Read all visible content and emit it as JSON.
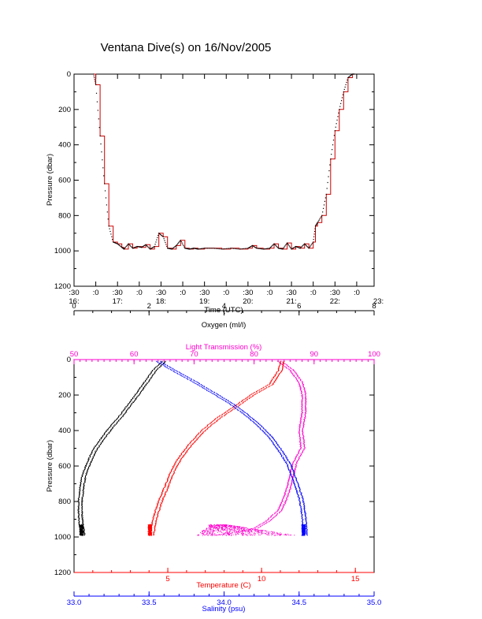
{
  "title": "Ventana Dive(s) on 16/Nov/2005",
  "colors": {
    "black": "#000000",
    "red": "#ff0000",
    "magenta": "#ff00cc",
    "blue": "#0000ff",
    "dive_line": "#cc0000"
  },
  "chart_data": [
    {
      "type": "line",
      "name": "dive-profile",
      "xlabel": "Time (UTC)",
      "ylabel": "Pressure (dbar)",
      "x_unit": "hours UTC",
      "xlim": [
        16.5,
        23.4
      ],
      "ylim": [
        1200,
        0
      ],
      "x_ticks_top": [
        ":30",
        ":0",
        ":30",
        ":0",
        ":30",
        ":0",
        ":30",
        ":0",
        ":30",
        ":0",
        ":30",
        ":0",
        ":30",
        ":0"
      ],
      "x_ticks_bottom": [
        "16:",
        "17:",
        "18:",
        "19:",
        "20:",
        "21:",
        "22:",
        "23:"
      ],
      "y_ticks": [
        "0",
        "200",
        "400",
        "600",
        "800",
        "1000",
        "1200"
      ],
      "x": [
        16.95,
        17.0,
        17.1,
        17.2,
        17.3,
        17.4,
        17.5,
        17.6,
        17.65,
        17.75,
        17.85,
        17.95,
        18.05,
        18.15,
        18.25,
        18.35,
        18.45,
        18.55,
        18.65,
        18.75,
        18.85,
        18.95,
        19.05,
        19.15,
        19.25,
        19.35,
        19.5,
        19.7,
        19.9,
        20.1,
        20.3,
        20.5,
        20.6,
        20.7,
        20.85,
        21.0,
        21.1,
        21.2,
        21.3,
        21.4,
        21.5,
        21.6,
        21.7,
        21.8,
        21.9,
        22.0,
        22.05,
        22.1,
        22.2,
        22.3,
        22.4,
        22.5,
        22.6,
        22.7,
        22.8,
        22.9,
        22.95
      ],
      "y": [
        0,
        60,
        350,
        620,
        860,
        950,
        960,
        980,
        990,
        960,
        985,
        975,
        980,
        965,
        990,
        975,
        900,
        920,
        985,
        990,
        970,
        940,
        985,
        990,
        985,
        990,
        985,
        985,
        990,
        985,
        990,
        985,
        970,
        985,
        990,
        985,
        960,
        985,
        990,
        955,
        990,
        975,
        985,
        960,
        985,
        950,
        860,
        840,
        800,
        680,
        480,
        320,
        200,
        100,
        20,
        0,
        0
      ]
    },
    {
      "type": "scatter",
      "name": "depth-profiles",
      "ylabel": "Pressure (dbar)",
      "ylim": [
        1200,
        0
      ],
      "y_ticks": [
        "0",
        "200",
        "400",
        "600",
        "800",
        "1000",
        "1200"
      ],
      "axes": {
        "oxygen": {
          "label": "Oxygen (ml/l)",
          "range": [
            0,
            8
          ],
          "ticks": [
            "0",
            "2",
            "4",
            "6",
            "8"
          ],
          "color": "#000000"
        },
        "light_transmission": {
          "label": "Light Transmission (%)",
          "range": [
            50,
            100
          ],
          "ticks": [
            "50",
            "60",
            "70",
            "80",
            "90",
            "100"
          ],
          "color": "#ff00cc"
        },
        "temperature": {
          "label": "Temperature (C)",
          "range": [
            0,
            16
          ],
          "ticks": [
            "5",
            "10",
            "15"
          ],
          "color": "#ff0000"
        },
        "salinity": {
          "label": "Salinity (psu)",
          "range": [
            33.0,
            35.0
          ],
          "ticks": [
            "33.0",
            "33.5",
            "34.0",
            "34.5",
            "35.0"
          ],
          "color": "#0000ff"
        }
      },
      "series": [
        {
          "name": "Oxygen",
          "axis": "oxygen",
          "color": "#000000",
          "x": [
            2.35,
            2.1,
            1.9,
            1.7,
            1.45,
            1.2,
            0.95,
            0.7,
            0.5,
            0.35,
            0.22,
            0.16,
            0.12,
            0.12,
            0.15,
            0.2
          ],
          "y": [
            10,
            60,
            120,
            180,
            250,
            320,
            380,
            450,
            510,
            580,
            650,
            720,
            800,
            870,
            940,
            990
          ]
        },
        {
          "name": "Light Transmission",
          "axis": "light_transmission",
          "color": "#ff00cc",
          "x": [
            84,
            86,
            87.5,
            88,
            88,
            87.5,
            87.8,
            86.5,
            86,
            85.5,
            84.8,
            84,
            82,
            80,
            77,
            73
          ],
          "y": [
            10,
            60,
            130,
            200,
            300,
            400,
            500,
            580,
            650,
            720,
            790,
            850,
            910,
            950,
            975,
            990
          ]
        },
        {
          "name": "Temperature",
          "axis": "temperature",
          "color": "#ff0000",
          "x": [
            11.0,
            10.9,
            10.4,
            9.4,
            8.6,
            7.6,
            6.8,
            6.1,
            5.6,
            5.2,
            4.9,
            4.5,
            4.2,
            4.05
          ],
          "y": [
            10,
            60,
            140,
            200,
            260,
            330,
            400,
            480,
            550,
            620,
            700,
            800,
            900,
            990
          ]
        },
        {
          "name": "Salinity",
          "axis": "salinity",
          "color": "#0000ff",
          "x": [
            33.55,
            33.65,
            33.78,
            33.9,
            34.02,
            34.12,
            34.22,
            34.3,
            34.36,
            34.42,
            34.46,
            34.5,
            34.52,
            34.53
          ],
          "y": [
            10,
            60,
            120,
            180,
            240,
            300,
            370,
            440,
            510,
            590,
            680,
            780,
            880,
            990
          ]
        }
      ]
    }
  ]
}
